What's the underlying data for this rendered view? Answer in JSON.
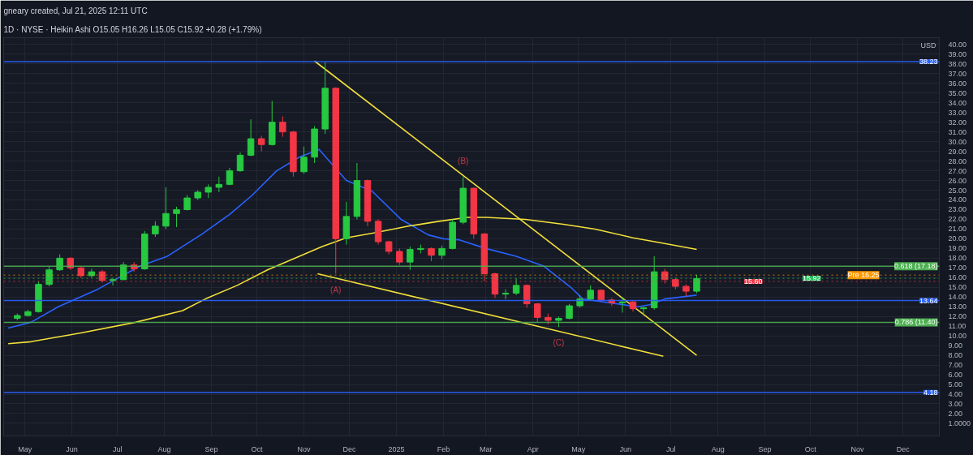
{
  "chart_data": {
    "type": "candlestick",
    "title": "gneary created, Jul 21, 2025 12:11 UTC",
    "subtitle": "1D · NYSE · Heikin Ashi  O15.05  H16.26  L15.05  C15.92  +0.28 (+1.79%)",
    "x": [
      "2024-04-26",
      "2024-05-03",
      "2024-05-10",
      "2024-05-17",
      "2024-05-24",
      "2024-05-31",
      "2024-06-07",
      "2024-06-14",
      "2024-06-21",
      "2024-06-28",
      "2024-07-05",
      "2024-07-12",
      "2024-07-19",
      "2024-07-26",
      "2024-08-02",
      "2024-08-09",
      "2024-08-16",
      "2024-08-23",
      "2024-08-30",
      "2024-09-06",
      "2024-09-13",
      "2024-09-20",
      "2024-09-27",
      "2024-10-04",
      "2024-10-11",
      "2024-10-18",
      "2024-10-25",
      "2024-11-01",
      "2024-11-08",
      "2024-11-15",
      "2024-11-22",
      "2024-11-29",
      "2024-12-06",
      "2024-12-13",
      "2024-12-20",
      "2024-12-27",
      "2025-01-03",
      "2025-01-10",
      "2025-01-17",
      "2025-01-24",
      "2025-01-31",
      "2025-02-07",
      "2025-02-14",
      "2025-02-21",
      "2025-02-28",
      "2025-03-07",
      "2025-03-14",
      "2025-03-21",
      "2025-03-28",
      "2025-04-04",
      "2025-04-11",
      "2025-04-18",
      "2025-04-25",
      "2025-05-02",
      "2025-05-09",
      "2025-05-16",
      "2025-05-23",
      "2025-05-30",
      "2025-06-06",
      "2025-06-13",
      "2025-06-20",
      "2025-06-27",
      "2025-07-04",
      "2025-07-11",
      "2025-07-18"
    ],
    "ohlc": [
      [
        11.8,
        12.3,
        11.6,
        12.1
      ],
      [
        12.1,
        12.7,
        12.0,
        12.5
      ],
      [
        12.5,
        15.6,
        12.4,
        15.3
      ],
      [
        15.3,
        17.1,
        15.1,
        16.8
      ],
      [
        16.8,
        18.4,
        16.7,
        18.0
      ],
      [
        18.0,
        18.1,
        16.8,
        17.0
      ],
      [
        17.0,
        17.1,
        16.0,
        16.2
      ],
      [
        16.2,
        16.9,
        16.0,
        16.6
      ],
      [
        16.6,
        16.8,
        15.5,
        15.7
      ],
      [
        15.7,
        16.0,
        15.2,
        15.8
      ],
      [
        15.8,
        17.6,
        15.7,
        17.3
      ],
      [
        17.3,
        17.6,
        16.6,
        16.9
      ],
      [
        16.9,
        20.8,
        16.8,
        20.5
      ],
      [
        20.5,
        21.8,
        20.2,
        21.3
      ],
      [
        21.3,
        25.3,
        21.0,
        22.6
      ],
      [
        22.6,
        23.3,
        21.2,
        23.0
      ],
      [
        23.0,
        24.5,
        22.9,
        24.2
      ],
      [
        24.2,
        25.0,
        24.0,
        24.8
      ],
      [
        24.8,
        25.6,
        24.2,
        25.3
      ],
      [
        25.3,
        26.4,
        24.8,
        25.6
      ],
      [
        25.6,
        27.3,
        25.5,
        27.0
      ],
      [
        27.0,
        28.9,
        26.9,
        28.6
      ],
      [
        28.6,
        32.3,
        28.5,
        30.3
      ],
      [
        30.3,
        30.6,
        29.0,
        29.7
      ],
      [
        29.7,
        34.2,
        29.6,
        32.0
      ],
      [
        32.0,
        32.6,
        30.5,
        31.0
      ],
      [
        31.0,
        31.1,
        26.4,
        26.9
      ],
      [
        26.9,
        29.5,
        26.7,
        28.4
      ],
      [
        28.4,
        31.6,
        27.8,
        31.3
      ],
      [
        31.3,
        38.2,
        30.8,
        35.5
      ],
      [
        35.5,
        35.6,
        16.4,
        20.0
      ],
      [
        20.0,
        23.8,
        19.4,
        22.3
      ],
      [
        22.3,
        27.8,
        22.0,
        26.0
      ],
      [
        26.0,
        26.1,
        21.3,
        21.8
      ],
      [
        21.8,
        22.0,
        19.4,
        19.7
      ],
      [
        19.7,
        19.8,
        18.4,
        18.7
      ],
      [
        18.7,
        19.0,
        17.3,
        17.6
      ],
      [
        17.6,
        19.2,
        16.8,
        18.9
      ],
      [
        18.9,
        19.4,
        18.5,
        19.0
      ],
      [
        19.0,
        19.1,
        17.7,
        18.3
      ],
      [
        18.3,
        19.3,
        17.9,
        19.0
      ],
      [
        19.0,
        22.0,
        18.9,
        21.7
      ],
      [
        21.7,
        26.4,
        21.5,
        25.2
      ],
      [
        25.2,
        25.3,
        20.0,
        20.5
      ],
      [
        20.5,
        20.6,
        15.6,
        16.4
      ],
      [
        16.4,
        16.5,
        13.9,
        14.3
      ],
      [
        14.3,
        14.8,
        13.8,
        14.4
      ],
      [
        14.4,
        15.9,
        14.2,
        15.2
      ],
      [
        15.2,
        15.3,
        12.9,
        13.3
      ],
      [
        13.3,
        13.4,
        11.4,
        11.9
      ],
      [
        11.9,
        12.3,
        11.2,
        11.6
      ],
      [
        11.6,
        12.0,
        10.9,
        11.8
      ],
      [
        11.8,
        13.3,
        11.7,
        13.1
      ],
      [
        13.1,
        14.2,
        12.9,
        13.8
      ],
      [
        13.8,
        15.2,
        13.6,
        14.7
      ],
      [
        14.7,
        14.8,
        13.5,
        13.7
      ],
      [
        13.7,
        13.9,
        13.1,
        13.4
      ],
      [
        13.4,
        14.0,
        12.4,
        13.5
      ],
      [
        13.5,
        13.6,
        12.5,
        12.8
      ],
      [
        12.8,
        13.0,
        12.2,
        12.9
      ],
      [
        12.9,
        18.2,
        12.7,
        16.6
      ],
      [
        16.6,
        16.9,
        15.4,
        15.8
      ],
      [
        15.8,
        16.0,
        14.8,
        15.1
      ],
      [
        15.1,
        15.3,
        14.1,
        14.6
      ],
      [
        14.6,
        16.3,
        14.4,
        15.9
      ]
    ],
    "colors": [
      "#26c940",
      "#26c940",
      "#26c940",
      "#26c940",
      "#26c940",
      "#f23645",
      "#f23645",
      "#26c940",
      "#f23645",
      "#26c940",
      "#26c940",
      "#f23645",
      "#26c940",
      "#26c940",
      "#26c940",
      "#26c940",
      "#26c940",
      "#26c940",
      "#26c940",
      "#26c940",
      "#26c940",
      "#26c940",
      "#26c940",
      "#f23645",
      "#26c940",
      "#f23645",
      "#f23645",
      "#26c940",
      "#26c940",
      "#26c940",
      "#f23645",
      "#26c940",
      "#26c940",
      "#f23645",
      "#f23645",
      "#f23645",
      "#f23645",
      "#26c940",
      "#26c940",
      "#f23645",
      "#26c940",
      "#26c940",
      "#26c940",
      "#f23645",
      "#f23645",
      "#f23645",
      "#26c940",
      "#26c940",
      "#f23645",
      "#f23645",
      "#f23645",
      "#26c940",
      "#26c940",
      "#26c940",
      "#26c940",
      "#f23645",
      "#f23645",
      "#26c940",
      "#f23645",
      "#26c940",
      "#26c940",
      "#f23645",
      "#f23645",
      "#f23645",
      "#26c940"
    ],
    "series": [
      {
        "type": "line",
        "color": "#2962ff",
        "x": [
          "2024-04-20",
          "2024-05-05",
          "2024-05-23",
          "2024-06-18",
          "2024-07-16",
          "2024-08-03",
          "2024-08-26",
          "2024-09-13",
          "2024-09-28",
          "2024-10-14",
          "2024-10-29",
          "2024-11-11",
          "2024-11-29",
          "2024-12-16",
          "2025-01-04",
          "2025-01-22",
          "2025-02-01",
          "2025-02-11",
          "2025-03-01",
          "2025-03-21",
          "2025-04-08",
          "2025-04-26",
          "2025-05-04",
          "2025-05-22",
          "2025-06-09",
          "2025-06-17",
          "2025-06-27",
          "2025-07-18"
        ],
        "values": [
          10.8,
          11.4,
          13.0,
          14.8,
          17.2,
          18.2,
          20.5,
          22.5,
          24.5,
          27.0,
          28.4,
          29.2,
          26.0,
          24.9,
          22.0,
          20.4,
          20.0,
          19.9,
          19.0,
          18.2,
          17.2,
          15.0,
          13.8,
          13.4,
          13.0,
          13.2,
          13.8,
          14.2
        ]
      },
      {
        "type": "line",
        "color": "#f2e03a",
        "x": [
          "2024-04-20",
          "2024-05-05",
          "2024-06-07",
          "2024-07-13",
          "2024-08-13",
          "2024-08-28",
          "2024-09-18",
          "2024-10-08",
          "2024-10-29",
          "2024-11-13",
          "2024-11-29",
          "2024-12-17",
          "2025-01-09",
          "2025-01-29",
          "2025-02-17",
          "2025-03-01",
          "2025-03-27",
          "2025-04-21",
          "2025-05-12",
          "2025-06-06",
          "2025-06-24",
          "2025-07-18"
        ],
        "values": [
          9.2,
          9.4,
          10.3,
          11.4,
          12.6,
          13.8,
          15.2,
          16.8,
          18.2,
          19.2,
          20.1,
          20.6,
          21.3,
          21.8,
          22.2,
          22.2,
          22.0,
          21.5,
          21.0,
          20.1,
          19.6,
          18.9
        ]
      },
      {
        "type": "line",
        "color": "#f2e03a",
        "x": [
          "2024-11-08",
          "2025-07-18"
        ],
        "values": [
          38.3,
          8.0
        ]
      },
      {
        "type": "line",
        "color": "#f2e03a",
        "x": [
          "2024-11-10",
          "2025-06-26"
        ],
        "values": [
          16.4,
          7.9
        ]
      }
    ],
    "ref_lines": [
      {
        "axis": "y",
        "value": 38.23,
        "label": "38.23",
        "color": "#2962ff",
        "line_style": "solid"
      },
      {
        "axis": "y",
        "value": 13.64,
        "label": "13.64",
        "color": "#2962ff",
        "line_style": "solid"
      },
      {
        "axis": "y",
        "value": 4.18,
        "label": "4.18",
        "color": "#2962ff",
        "line_style": "solid"
      },
      {
        "axis": "y",
        "value": 17.18,
        "label": "0.618 (17.18)",
        "color": "#4caf50",
        "line_style": "solid"
      },
      {
        "axis": "y",
        "value": 11.4,
        "label": "0.786 (11.40)",
        "color": "#4caf50",
        "line_style": "solid"
      },
      {
        "axis": "y",
        "value": 16.25,
        "label": "Pre 16.25",
        "color": "#ff9800",
        "line_style": "dotted"
      },
      {
        "axis": "y",
        "value": 15.92,
        "label": "15.92",
        "color": "#22c55e",
        "line_style": "dotted"
      },
      {
        "axis": "y",
        "value": 15.6,
        "label": "15.60",
        "color": "#f23645",
        "line_style": "dotted"
      }
    ],
    "annotations": [
      {
        "text": "(A)",
        "x": "2024-11-22",
        "y": 16.4
      },
      {
        "text": "(B)",
        "x": "2025-02-14",
        "y": 26.4
      },
      {
        "text": "(C)",
        "x": "2025-04-18",
        "y": 10.9
      },
      "USD"
    ],
    "legend": "right",
    "xlim": [
      "2024-04-17",
      "2025-12-25"
    ],
    "xticks": [
      {
        "value": "2024-05-01",
        "label": "May"
      },
      {
        "value": "2024-06-01",
        "label": "Jun"
      },
      {
        "value": "2024-07-01",
        "label": "Jul"
      },
      {
        "value": "2024-08-01",
        "label": "Aug"
      },
      {
        "value": "2024-09-01",
        "label": "Sep"
      },
      {
        "value": "2024-10-01",
        "label": "Oct"
      },
      {
        "value": "2024-11-01",
        "label": "Nov"
      },
      {
        "value": "2024-12-01",
        "label": "Dec"
      },
      {
        "value": "2025-01-01",
        "label": "2025"
      },
      {
        "value": "2025-02-01",
        "label": "Feb"
      },
      {
        "value": "2025-03-01",
        "label": "Mar"
      },
      {
        "value": "2025-04-01",
        "label": "Apr"
      },
      {
        "value": "2025-05-01",
        "label": "May"
      },
      {
        "value": "2025-06-01",
        "label": "Jun"
      },
      {
        "value": "2025-07-01",
        "label": "Jul"
      },
      {
        "value": "2025-08-01",
        "label": "Aug"
      },
      {
        "value": "2025-09-01",
        "label": "Sep"
      },
      {
        "value": "2025-10-01",
        "label": "Oct"
      },
      {
        "value": "2025-11-01",
        "label": "Nov"
      },
      {
        "value": "2025-12-01",
        "label": "Dec"
      }
    ],
    "ylim": [
      -0.3,
      40.7
    ],
    "yticks": [
      {
        "value": 1,
        "label": "1.0000"
      },
      {
        "value": 2,
        "label": "2.00"
      },
      {
        "value": 3,
        "label": "3.00"
      },
      {
        "value": 4,
        "label": "4.00"
      },
      {
        "value": 5,
        "label": "5.00"
      },
      {
        "value": 6,
        "label": "6.00"
      },
      {
        "value": 7,
        "label": "7.00"
      },
      {
        "value": 8,
        "label": "8.00"
      },
      {
        "value": 9,
        "label": "9.00"
      },
      {
        "value": 10,
        "label": "10.00"
      },
      {
        "value": 11,
        "label": "11.00"
      },
      {
        "value": 12,
        "label": "12.00"
      },
      {
        "value": 13,
        "label": "13.00"
      },
      {
        "value": 14,
        "label": "14.00"
      },
      {
        "value": 15,
        "label": "15.00"
      },
      {
        "value": 16,
        "label": "16.00"
      },
      {
        "value": 17,
        "label": "17.00"
      },
      {
        "value": 18,
        "label": "18.00"
      },
      {
        "value": 19,
        "label": "19.00"
      },
      {
        "value": 20,
        "label": "20.00"
      },
      {
        "value": 21,
        "label": "21.00"
      },
      {
        "value": 22,
        "label": "22.00"
      },
      {
        "value": 23,
        "label": "23.00"
      },
      {
        "value": 24,
        "label": "24.00"
      },
      {
        "value": 25,
        "label": "25.00"
      },
      {
        "value": 26,
        "label": "26.00"
      },
      {
        "value": 27,
        "label": "27.00"
      },
      {
        "value": 28,
        "label": "28.00"
      },
      {
        "value": 29,
        "label": "29.00"
      },
      {
        "value": 30,
        "label": "30.00"
      },
      {
        "value": 31,
        "label": "31.00"
      },
      {
        "value": 32,
        "label": "32.00"
      },
      {
        "value": 33,
        "label": "33.00"
      },
      {
        "value": 34,
        "label": "34.00"
      },
      {
        "value": 35,
        "label": "35.00"
      },
      {
        "value": 36,
        "label": "36.00"
      },
      {
        "value": 37,
        "label": "37.00"
      },
      {
        "value": 38,
        "label": "38.00"
      },
      {
        "value": 39,
        "label": "39.00"
      },
      {
        "value": 40,
        "label": "40.00"
      }
    ],
    "grid": true
  }
}
